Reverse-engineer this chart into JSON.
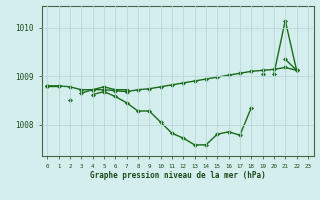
{
  "xlabel": "Graphe pression niveau de la mer (hPa)",
  "bg_color": "#d4eeee",
  "grid_color": "#b8d8d8",
  "line_color": "#1a6b1a",
  "marker_color": "#1a6b1a",
  "hours": [
    0,
    1,
    2,
    3,
    4,
    5,
    6,
    7,
    8,
    9,
    10,
    11,
    12,
    13,
    14,
    15,
    16,
    17,
    18,
    19,
    20,
    21,
    22,
    23
  ],
  "series1": [
    1008.8,
    1008.8,
    null,
    1008.65,
    1008.72,
    1008.78,
    1008.72,
    1008.72,
    null,
    null,
    null,
    null,
    null,
    null,
    null,
    null,
    null,
    null,
    null,
    1009.05,
    null,
    1009.35,
    1009.12,
    null
  ],
  "series2": [
    1008.8,
    null,
    1008.5,
    null,
    1008.62,
    1008.68,
    1008.58,
    1008.45,
    1008.28,
    1008.28,
    1008.05,
    1007.82,
    1007.72,
    1007.58,
    1007.58,
    1007.8,
    1007.85,
    1007.78,
    1008.35,
    null,
    1009.05,
    1010.15,
    1009.12,
    null
  ],
  "series3": [
    1008.8,
    1008.8,
    1008.78,
    1008.72,
    1008.72,
    1008.72,
    1008.7,
    1008.68,
    1008.72,
    1008.74,
    1008.78,
    1008.82,
    1008.86,
    1008.9,
    1008.94,
    1008.98,
    1009.02,
    1009.06,
    1009.1,
    1009.12,
    1009.14,
    1009.18,
    1009.12,
    null
  ],
  "ylim_min": 1007.35,
  "ylim_max": 1010.45,
  "yticks": [
    1008.0,
    1009.0,
    1010.0
  ],
  "ytick_labels": [
    "1008",
    "1009",
    "1010"
  ]
}
